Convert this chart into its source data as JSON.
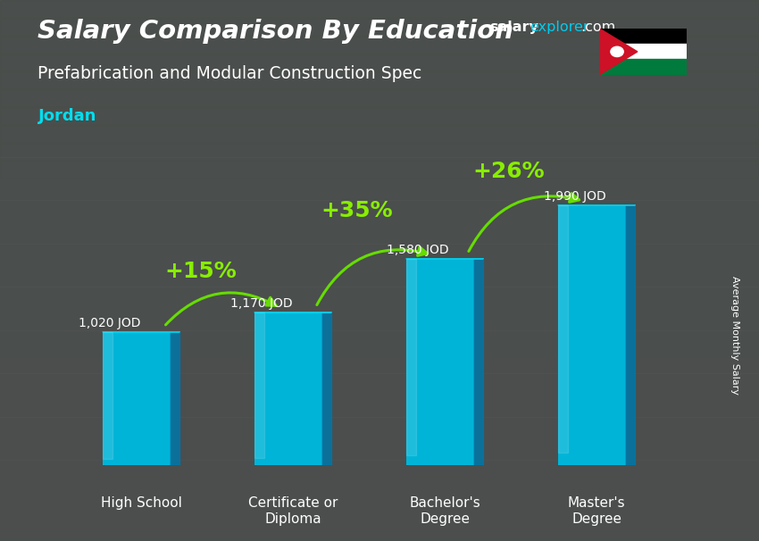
{
  "title_main": "Salary Comparison By Education",
  "subtitle": "Prefabrication and Modular Construction Spec",
  "country": "Jordan",
  "ylabel": "Average Monthly Salary",
  "categories": [
    "High School",
    "Certificate or\nDiploma",
    "Bachelor's\nDegree",
    "Master's\nDegree"
  ],
  "values": [
    1020,
    1170,
    1580,
    1990
  ],
  "labels": [
    "1,020 JOD",
    "1,170 JOD",
    "1,580 JOD",
    "1,990 JOD"
  ],
  "pct_labels": [
    "+15%",
    "+35%",
    "+26%"
  ],
  "bar_color_main": "#00b4d8",
  "bar_color_left": "#0077a8",
  "bar_color_top": "#00d4f0",
  "pct_color": "#88ee00",
  "arrow_color": "#66dd00",
  "title_color": "#ffffff",
  "subtitle_color": "#ffffff",
  "country_color": "#00ddee",
  "label_color": "#ffffff",
  "bg_color": "#5a6060",
  "ylim": [
    0,
    2400
  ],
  "figsize": [
    8.5,
    6.06
  ],
  "dpi": 100
}
